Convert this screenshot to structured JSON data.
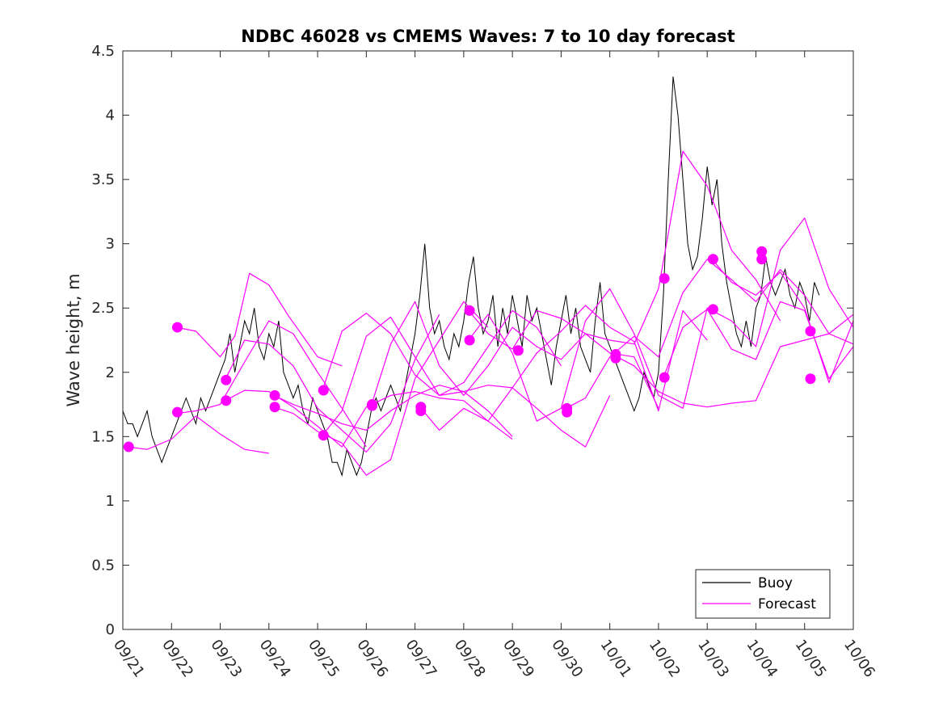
{
  "chart_data": {
    "type": "line",
    "title": "NDBC 46028 vs CMEMS Waves: 7 to 10 day forecast",
    "xlabel": "",
    "ylabel": "Wave height, m",
    "xlim": [
      0,
      15
    ],
    "ylim": [
      0,
      4.5
    ],
    "yticks": [
      0,
      0.5,
      1,
      1.5,
      2,
      2.5,
      3,
      3.5,
      4,
      4.5
    ],
    "ytick_labels": [
      "0",
      "0.5",
      "1",
      "1.5",
      "2",
      "2.5",
      "3",
      "3.5",
      "4",
      "4.5"
    ],
    "xtick_labels": [
      "09/21",
      "09/22",
      "09/23",
      "09/24",
      "09/25",
      "09/26",
      "09/27",
      "09/28",
      "09/29",
      "09/30",
      "10/01",
      "10/02",
      "10/03",
      "10/04",
      "10/05",
      "10/06"
    ],
    "legend": {
      "location": "bottom-right",
      "entries": [
        {
          "label": "Buoy",
          "color": "#000000"
        },
        {
          "label": "Forecast",
          "color": "#ff00ff"
        }
      ]
    },
    "colors": {
      "buoy": "#000000",
      "forecast": "#ff00ff"
    },
    "series": [
      {
        "name": "Buoy",
        "x": [
          0.0,
          0.1,
          0.2,
          0.3,
          0.4,
          0.5,
          0.6,
          0.7,
          0.8,
          0.9,
          1.0,
          1.1,
          1.2,
          1.3,
          1.4,
          1.5,
          1.6,
          1.7,
          1.8,
          1.9,
          2.0,
          2.1,
          2.2,
          2.3,
          2.4,
          2.5,
          2.6,
          2.7,
          2.8,
          2.9,
          3.0,
          3.1,
          3.2,
          3.3,
          3.4,
          3.5,
          3.6,
          3.7,
          3.8,
          3.9,
          4.0,
          4.1,
          4.2,
          4.3,
          4.4,
          4.5,
          4.6,
          4.7,
          4.8,
          4.9,
          5.0,
          5.1,
          5.2,
          5.3,
          5.4,
          5.5,
          5.6,
          5.7,
          5.8,
          5.9,
          6.0,
          6.1,
          6.2,
          6.3,
          6.4,
          6.5,
          6.6,
          6.7,
          6.8,
          6.9,
          7.0,
          7.1,
          7.2,
          7.3,
          7.4,
          7.5,
          7.6,
          7.7,
          7.8,
          7.9,
          8.0,
          8.1,
          8.2,
          8.3,
          8.4,
          8.5,
          8.6,
          8.7,
          8.8,
          8.9,
          9.0,
          9.1,
          9.2,
          9.3,
          9.4,
          9.5,
          9.6,
          9.7,
          9.8,
          9.9,
          10.0,
          10.1,
          10.2,
          10.3,
          10.4,
          10.5,
          10.6,
          10.7,
          10.8,
          10.9,
          11.0,
          11.1,
          11.2,
          11.3,
          11.4,
          11.5,
          11.6,
          11.7,
          11.8,
          11.9,
          12.0,
          12.1,
          12.2,
          12.3,
          12.4,
          12.5,
          12.6,
          12.7,
          12.8,
          12.9,
          13.0,
          13.1,
          13.2,
          13.3,
          13.4,
          13.5,
          13.6,
          13.7,
          13.8,
          13.9,
          14.0,
          14.1,
          14.2,
          14.3
        ],
        "y": [
          1.7,
          1.6,
          1.6,
          1.5,
          1.6,
          1.7,
          1.5,
          1.4,
          1.3,
          1.4,
          1.5,
          1.6,
          1.7,
          1.8,
          1.7,
          1.6,
          1.8,
          1.7,
          1.8,
          1.9,
          2.0,
          2.1,
          2.3,
          2.0,
          2.2,
          2.4,
          2.3,
          2.5,
          2.2,
          2.1,
          2.3,
          2.2,
          2.4,
          2.0,
          1.9,
          1.8,
          1.9,
          1.7,
          1.6,
          1.8,
          1.7,
          1.6,
          1.5,
          1.3,
          1.3,
          1.2,
          1.4,
          1.3,
          1.2,
          1.3,
          1.5,
          1.7,
          1.8,
          1.7,
          1.8,
          1.9,
          1.8,
          1.7,
          1.9,
          2.1,
          2.3,
          2.6,
          3.0,
          2.5,
          2.3,
          2.4,
          2.2,
          2.1,
          2.3,
          2.2,
          2.4,
          2.7,
          2.9,
          2.5,
          2.3,
          2.4,
          2.6,
          2.2,
          2.5,
          2.3,
          2.6,
          2.4,
          2.2,
          2.6,
          2.4,
          2.5,
          2.3,
          2.1,
          1.9,
          2.2,
          2.4,
          2.6,
          2.3,
          2.5,
          2.2,
          2.1,
          2.0,
          2.4,
          2.7,
          2.3,
          2.2,
          2.1,
          2.0,
          1.9,
          1.8,
          1.7,
          1.8,
          2.0,
          1.9,
          1.8,
          2.0,
          2.6,
          3.5,
          4.3,
          4.0,
          3.5,
          3.0,
          2.8,
          2.9,
          3.2,
          3.6,
          3.3,
          3.5,
          3.0,
          2.7,
          2.5,
          2.3,
          2.2,
          2.4,
          2.2,
          2.5,
          2.6,
          2.9,
          2.7,
          2.6,
          2.7,
          2.8,
          2.6,
          2.5,
          2.7,
          2.6,
          2.4,
          2.7,
          2.6
        ]
      },
      {
        "name": "Forecast 1",
        "x": [
          0.1,
          0.5,
          1.0,
          1.5,
          2.0,
          2.5,
          3.0
        ],
        "y": [
          1.42,
          1.4,
          1.48,
          1.66,
          1.52,
          1.4,
          1.37
        ]
      },
      {
        "name": "Forecast 2",
        "x": [
          1.1,
          1.5,
          2.0,
          2.3,
          2.6,
          3.0,
          3.4,
          4.0,
          4.5
        ],
        "y": [
          2.35,
          2.32,
          2.12,
          2.28,
          2.77,
          2.68,
          2.44,
          2.12,
          2.05
        ]
      },
      {
        "name": "Forecast 3",
        "x": [
          1.1,
          1.5,
          2.0,
          2.5,
          3.0,
          3.5,
          4.0,
          4.5,
          5.0
        ],
        "y": [
          1.68,
          1.7,
          1.75,
          2.08,
          2.4,
          2.3,
          2.0,
          1.72,
          1.42
        ]
      },
      {
        "name": "Forecast 4",
        "x": [
          2.1,
          2.5,
          3.0,
          3.5,
          4.0,
          4.5,
          5.0,
          5.5,
          6.0,
          6.5
        ],
        "y": [
          1.94,
          2.25,
          2.22,
          2.05,
          1.72,
          1.55,
          1.38,
          1.6,
          2.1,
          2.45
        ]
      },
      {
        "name": "Forecast 5",
        "x": [
          2.1,
          2.5,
          3.0,
          3.5,
          4.0,
          4.5,
          5.0,
          5.5,
          6.0,
          6.5,
          7.0,
          7.5,
          8.0
        ],
        "y": [
          1.78,
          1.86,
          1.85,
          1.73,
          1.58,
          1.42,
          1.73,
          1.82,
          1.85,
          1.8,
          1.78,
          1.62,
          1.48
        ]
      },
      {
        "name": "Forecast 6",
        "x": [
          3.1,
          3.5,
          4.0,
          4.5,
          5.0,
          5.5,
          6.0,
          6.5,
          7.0,
          7.5,
          8.0
        ],
        "y": [
          1.82,
          1.75,
          1.68,
          1.6,
          1.55,
          1.7,
          1.82,
          1.9,
          1.85,
          1.7,
          1.5
        ]
      },
      {
        "name": "Forecast 7",
        "x": [
          3.1,
          3.5,
          4.0,
          4.5,
          5.0,
          5.5,
          6.0,
          6.5,
          7.0,
          7.5
        ],
        "y": [
          1.73,
          1.68,
          1.54,
          1.45,
          1.2,
          1.32,
          1.95,
          2.25,
          2.55,
          2.35
        ]
      },
      {
        "name": "Forecast 8",
        "x": [
          4.1,
          4.5,
          5.0,
          5.5,
          6.0,
          6.5,
          7.0,
          7.5,
          8.0,
          8.5,
          9.0
        ],
        "y": [
          1.86,
          2.32,
          2.46,
          2.3,
          1.98,
          1.82,
          1.92,
          2.2,
          2.48,
          2.35,
          2.05
        ]
      },
      {
        "name": "Forecast 9",
        "x": [
          4.1,
          4.5,
          5.0,
          5.5,
          6.0,
          6.5,
          7.0,
          7.5,
          8.0,
          8.5,
          9.0,
          9.5,
          10.0
        ],
        "y": [
          1.51,
          1.7,
          2.28,
          2.43,
          2.12,
          1.82,
          1.85,
          1.9,
          1.88,
          1.72,
          1.55,
          1.42,
          1.82
        ]
      },
      {
        "name": "Forecast 10",
        "x": [
          5.1,
          5.5,
          6.0,
          6.5,
          7.0,
          7.5,
          8.0,
          8.5,
          9.0,
          9.5,
          10.0,
          10.5,
          11.0
        ],
        "y": [
          1.74,
          2.22,
          2.55,
          2.05,
          1.82,
          2.05,
          2.35,
          2.2,
          2.1,
          2.3,
          2.15,
          2.12,
          1.72
        ]
      },
      {
        "name": "Forecast 11",
        "x": [
          6.1,
          6.5,
          7.0,
          7.5,
          8.0,
          8.5,
          9.0,
          9.5,
          10.0,
          10.5,
          11.0,
          11.5,
          12.0
        ],
        "y": [
          1.73,
          1.55,
          1.72,
          1.62,
          1.88,
          2.15,
          2.32,
          2.52,
          2.35,
          2.24,
          1.7,
          2.48,
          2.25
        ]
      },
      {
        "name": "Forecast 12",
        "x": [
          7.1,
          7.5,
          8.0,
          8.5,
          9.0,
          9.5,
          10.0,
          10.5,
          11.0,
          11.5,
          12.0,
          12.5,
          13.0,
          13.5
        ],
        "y": [
          2.48,
          2.3,
          2.18,
          2.48,
          2.42,
          2.3,
          2.25,
          2.22,
          2.65,
          3.72,
          3.45,
          2.95,
          2.72,
          2.4
        ]
      },
      {
        "name": "Forecast 13",
        "x": [
          7.1,
          7.5,
          8.0,
          8.5,
          9.0,
          9.5,
          10.0,
          10.5,
          11.0,
          11.5,
          12.0,
          12.5,
          13.0,
          13.5,
          14.0,
          14.5,
          15.0
        ],
        "y": [
          2.25,
          2.45,
          2.15,
          1.62,
          1.72,
          2.4,
          2.65,
          2.3,
          1.82,
          1.72,
          2.5,
          2.4,
          2.2,
          2.95,
          3.2,
          2.65,
          2.35
        ]
      },
      {
        "name": "Forecast 14",
        "x": [
          9.1,
          9.5,
          10.0,
          10.5,
          11.0,
          11.5,
          12.0,
          12.5,
          13.0,
          13.5,
          14.0,
          14.5,
          15.0
        ],
        "y": [
          1.72,
          1.8,
          2.12,
          2.28,
          2.12,
          2.62,
          2.88,
          2.72,
          2.55,
          2.8,
          2.6,
          2.3,
          2.45
        ]
      },
      {
        "name": "Forecast 15",
        "x": [
          10.1,
          10.5,
          11.0,
          11.5,
          12.0,
          12.5,
          13.0,
          13.5,
          14.0,
          14.5,
          15.0
        ],
        "y": [
          2.13,
          2.05,
          1.85,
          1.76,
          1.73,
          1.76,
          1.78,
          2.2,
          2.25,
          2.3,
          2.22
        ]
      },
      {
        "name": "Forecast 16",
        "x": [
          11.1,
          11.5,
          12.0,
          12.5,
          13.0,
          13.5,
          14.0,
          14.5,
          15.0
        ],
        "y": [
          1.96,
          2.35,
          2.49,
          2.18,
          2.1,
          2.55,
          2.48,
          1.95,
          2.2
        ]
      },
      {
        "name": "Forecast 17",
        "x": [
          12.1,
          12.5,
          13.0,
          13.5,
          14.0,
          14.5,
          15.0
        ],
        "y": [
          2.88,
          2.7,
          2.6,
          2.78,
          2.5,
          1.92,
          2.4
        ]
      }
    ],
    "markers": [
      {
        "x": 0.12,
        "y": 1.42
      },
      {
        "x": 1.12,
        "y": 2.35
      },
      {
        "x": 1.12,
        "y": 1.69
      },
      {
        "x": 2.12,
        "y": 1.94
      },
      {
        "x": 2.12,
        "y": 1.78
      },
      {
        "x": 3.12,
        "y": 1.82
      },
      {
        "x": 3.12,
        "y": 1.73
      },
      {
        "x": 4.12,
        "y": 1.86
      },
      {
        "x": 4.12,
        "y": 1.51
      },
      {
        "x": 5.12,
        "y": 1.75
      },
      {
        "x": 5.12,
        "y": 1.74
      },
      {
        "x": 6.12,
        "y": 1.73
      },
      {
        "x": 6.12,
        "y": 1.7
      },
      {
        "x": 7.12,
        "y": 2.48
      },
      {
        "x": 7.12,
        "y": 2.25
      },
      {
        "x": 8.12,
        "y": 2.17
      },
      {
        "x": 9.12,
        "y": 1.72
      },
      {
        "x": 9.12,
        "y": 1.69
      },
      {
        "x": 10.12,
        "y": 2.14
      },
      {
        "x": 10.12,
        "y": 2.11
      },
      {
        "x": 11.12,
        "y": 2.73
      },
      {
        "x": 11.12,
        "y": 1.96
      },
      {
        "x": 12.12,
        "y": 2.88
      },
      {
        "x": 12.12,
        "y": 2.49
      },
      {
        "x": 13.12,
        "y": 2.94
      },
      {
        "x": 13.12,
        "y": 2.88
      },
      {
        "x": 14.12,
        "y": 2.32
      },
      {
        "x": 14.12,
        "y": 1.95
      }
    ]
  }
}
